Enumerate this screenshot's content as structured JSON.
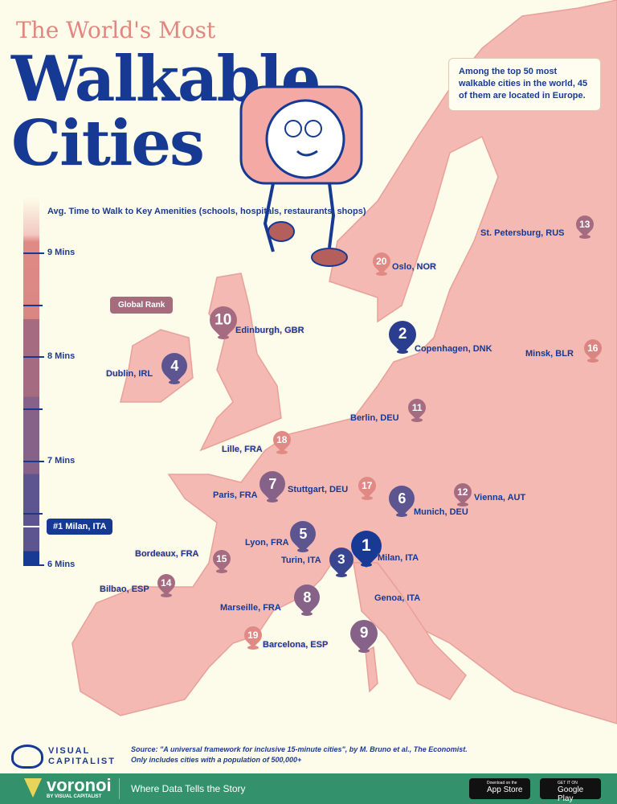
{
  "title": {
    "line1": "The World's Most",
    "line2": "Walkable",
    "line3": "Cities"
  },
  "note": "Among the top 50 most walkable cities in the world, 45 of them are located in Europe.",
  "legend": {
    "title": "Avg. Time to Walk to Key Amenities (schools, hospitals, restaurants, shops)",
    "ticks": [
      "9 Mins",
      "8 Mins",
      "7 Mins",
      "6 Mins"
    ],
    "top_marker": "#1 Milan, ITA",
    "global_rank_label": "Global Rank"
  },
  "colors": {
    "background": "#fdfbe9",
    "land": "#f4b9b2",
    "navy": "#163a94",
    "footer": "#33926b"
  },
  "cities": [
    {
      "rank": "1",
      "name": "Milan, ITA"
    },
    {
      "rank": "2",
      "name": "Copenhagen, DNK"
    },
    {
      "rank": "3",
      "name": "Turin, ITA"
    },
    {
      "rank": "4",
      "name": "Dublin, IRL"
    },
    {
      "rank": "5",
      "name": "Lyon, FRA"
    },
    {
      "rank": "6",
      "name": "Munich, DEU"
    },
    {
      "rank": "7",
      "name": "Paris, FRA"
    },
    {
      "rank": "8",
      "name": "Marseille, FRA"
    },
    {
      "rank": "9",
      "name": "Genoa, ITA"
    },
    {
      "rank": "10",
      "name": "Edinburgh, GBR"
    },
    {
      "rank": "11",
      "name": "Berlin, DEU"
    },
    {
      "rank": "12",
      "name": "Vienna, AUT"
    },
    {
      "rank": "13",
      "name": "St. Petersburg, RUS"
    },
    {
      "rank": "14",
      "name": "Bilbao, ESP"
    },
    {
      "rank": "15",
      "name": "Bordeaux, FRA"
    },
    {
      "rank": "16",
      "name": "Minsk, BLR"
    },
    {
      "rank": "17",
      "name": "Stuttgart, DEU"
    },
    {
      "rank": "18",
      "name": "Lille, FRA"
    },
    {
      "rank": "19",
      "name": "Barcelona, ESP"
    },
    {
      "rank": "20",
      "name": "Oslo, NOR"
    }
  ],
  "source": {
    "line1": "Source: \"A universal framework for inclusive 15-minute cities\", by M. Bruno et al., The Economist.",
    "line2": "Only includes cities with a population of 500,000+"
  },
  "brand": {
    "vc_line1": "VISUAL",
    "vc_line2": "CAPITALIST",
    "voronoi": "voronoi",
    "voronoi_sub": "BY VISUAL CAPITALIST",
    "tagline": "Where Data Tells the Story",
    "app_store_small": "Download on the",
    "app_store": "App Store",
    "google_small": "GET IT ON",
    "google": "Google Play"
  }
}
